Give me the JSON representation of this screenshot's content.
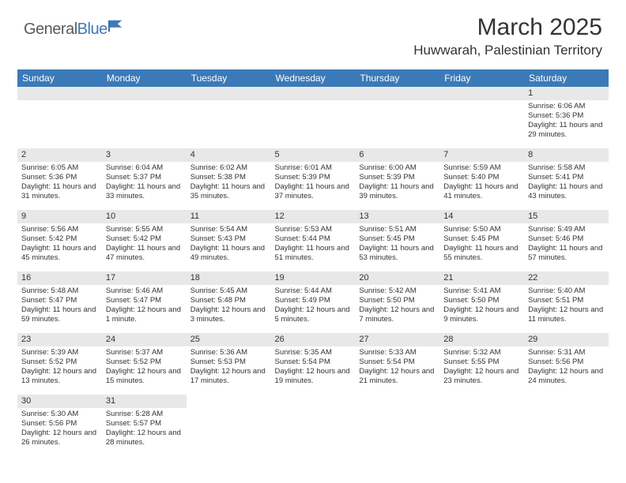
{
  "logo": {
    "text_plain": "General",
    "text_blue": "Blue"
  },
  "title": "March 2025",
  "location": "Huwwarah, Palestinian Territory",
  "colors": {
    "header_bg": "#3b7ab8",
    "header_fg": "#ffffff",
    "daynum_bg": "#e8e8e8",
    "text": "#333333",
    "page_bg": "#ffffff"
  },
  "day_headers": [
    "Sunday",
    "Monday",
    "Tuesday",
    "Wednesday",
    "Thursday",
    "Friday",
    "Saturday"
  ],
  "weeks": [
    [
      {
        "n": "",
        "sr": "",
        "ss": "",
        "dl": ""
      },
      {
        "n": "",
        "sr": "",
        "ss": "",
        "dl": ""
      },
      {
        "n": "",
        "sr": "",
        "ss": "",
        "dl": ""
      },
      {
        "n": "",
        "sr": "",
        "ss": "",
        "dl": ""
      },
      {
        "n": "",
        "sr": "",
        "ss": "",
        "dl": ""
      },
      {
        "n": "",
        "sr": "",
        "ss": "",
        "dl": ""
      },
      {
        "n": "1",
        "sr": "Sunrise: 6:06 AM",
        "ss": "Sunset: 5:36 PM",
        "dl": "Daylight: 11 hours and 29 minutes."
      }
    ],
    [
      {
        "n": "2",
        "sr": "Sunrise: 6:05 AM",
        "ss": "Sunset: 5:36 PM",
        "dl": "Daylight: 11 hours and 31 minutes."
      },
      {
        "n": "3",
        "sr": "Sunrise: 6:04 AM",
        "ss": "Sunset: 5:37 PM",
        "dl": "Daylight: 11 hours and 33 minutes."
      },
      {
        "n": "4",
        "sr": "Sunrise: 6:02 AM",
        "ss": "Sunset: 5:38 PM",
        "dl": "Daylight: 11 hours and 35 minutes."
      },
      {
        "n": "5",
        "sr": "Sunrise: 6:01 AM",
        "ss": "Sunset: 5:39 PM",
        "dl": "Daylight: 11 hours and 37 minutes."
      },
      {
        "n": "6",
        "sr": "Sunrise: 6:00 AM",
        "ss": "Sunset: 5:39 PM",
        "dl": "Daylight: 11 hours and 39 minutes."
      },
      {
        "n": "7",
        "sr": "Sunrise: 5:59 AM",
        "ss": "Sunset: 5:40 PM",
        "dl": "Daylight: 11 hours and 41 minutes."
      },
      {
        "n": "8",
        "sr": "Sunrise: 5:58 AM",
        "ss": "Sunset: 5:41 PM",
        "dl": "Daylight: 11 hours and 43 minutes."
      }
    ],
    [
      {
        "n": "9",
        "sr": "Sunrise: 5:56 AM",
        "ss": "Sunset: 5:42 PM",
        "dl": "Daylight: 11 hours and 45 minutes."
      },
      {
        "n": "10",
        "sr": "Sunrise: 5:55 AM",
        "ss": "Sunset: 5:42 PM",
        "dl": "Daylight: 11 hours and 47 minutes."
      },
      {
        "n": "11",
        "sr": "Sunrise: 5:54 AM",
        "ss": "Sunset: 5:43 PM",
        "dl": "Daylight: 11 hours and 49 minutes."
      },
      {
        "n": "12",
        "sr": "Sunrise: 5:53 AM",
        "ss": "Sunset: 5:44 PM",
        "dl": "Daylight: 11 hours and 51 minutes."
      },
      {
        "n": "13",
        "sr": "Sunrise: 5:51 AM",
        "ss": "Sunset: 5:45 PM",
        "dl": "Daylight: 11 hours and 53 minutes."
      },
      {
        "n": "14",
        "sr": "Sunrise: 5:50 AM",
        "ss": "Sunset: 5:45 PM",
        "dl": "Daylight: 11 hours and 55 minutes."
      },
      {
        "n": "15",
        "sr": "Sunrise: 5:49 AM",
        "ss": "Sunset: 5:46 PM",
        "dl": "Daylight: 11 hours and 57 minutes."
      }
    ],
    [
      {
        "n": "16",
        "sr": "Sunrise: 5:48 AM",
        "ss": "Sunset: 5:47 PM",
        "dl": "Daylight: 11 hours and 59 minutes."
      },
      {
        "n": "17",
        "sr": "Sunrise: 5:46 AM",
        "ss": "Sunset: 5:47 PM",
        "dl": "Daylight: 12 hours and 1 minute."
      },
      {
        "n": "18",
        "sr": "Sunrise: 5:45 AM",
        "ss": "Sunset: 5:48 PM",
        "dl": "Daylight: 12 hours and 3 minutes."
      },
      {
        "n": "19",
        "sr": "Sunrise: 5:44 AM",
        "ss": "Sunset: 5:49 PM",
        "dl": "Daylight: 12 hours and 5 minutes."
      },
      {
        "n": "20",
        "sr": "Sunrise: 5:42 AM",
        "ss": "Sunset: 5:50 PM",
        "dl": "Daylight: 12 hours and 7 minutes."
      },
      {
        "n": "21",
        "sr": "Sunrise: 5:41 AM",
        "ss": "Sunset: 5:50 PM",
        "dl": "Daylight: 12 hours and 9 minutes."
      },
      {
        "n": "22",
        "sr": "Sunrise: 5:40 AM",
        "ss": "Sunset: 5:51 PM",
        "dl": "Daylight: 12 hours and 11 minutes."
      }
    ],
    [
      {
        "n": "23",
        "sr": "Sunrise: 5:39 AM",
        "ss": "Sunset: 5:52 PM",
        "dl": "Daylight: 12 hours and 13 minutes."
      },
      {
        "n": "24",
        "sr": "Sunrise: 5:37 AM",
        "ss": "Sunset: 5:52 PM",
        "dl": "Daylight: 12 hours and 15 minutes."
      },
      {
        "n": "25",
        "sr": "Sunrise: 5:36 AM",
        "ss": "Sunset: 5:53 PM",
        "dl": "Daylight: 12 hours and 17 minutes."
      },
      {
        "n": "26",
        "sr": "Sunrise: 5:35 AM",
        "ss": "Sunset: 5:54 PM",
        "dl": "Daylight: 12 hours and 19 minutes."
      },
      {
        "n": "27",
        "sr": "Sunrise: 5:33 AM",
        "ss": "Sunset: 5:54 PM",
        "dl": "Daylight: 12 hours and 21 minutes."
      },
      {
        "n": "28",
        "sr": "Sunrise: 5:32 AM",
        "ss": "Sunset: 5:55 PM",
        "dl": "Daylight: 12 hours and 23 minutes."
      },
      {
        "n": "29",
        "sr": "Sunrise: 5:31 AM",
        "ss": "Sunset: 5:56 PM",
        "dl": "Daylight: 12 hours and 24 minutes."
      }
    ],
    [
      {
        "n": "30",
        "sr": "Sunrise: 5:30 AM",
        "ss": "Sunset: 5:56 PM",
        "dl": "Daylight: 12 hours and 26 minutes."
      },
      {
        "n": "31",
        "sr": "Sunrise: 5:28 AM",
        "ss": "Sunset: 5:57 PM",
        "dl": "Daylight: 12 hours and 28 minutes."
      },
      {
        "n": "",
        "sr": "",
        "ss": "",
        "dl": ""
      },
      {
        "n": "",
        "sr": "",
        "ss": "",
        "dl": ""
      },
      {
        "n": "",
        "sr": "",
        "ss": "",
        "dl": ""
      },
      {
        "n": "",
        "sr": "",
        "ss": "",
        "dl": ""
      },
      {
        "n": "",
        "sr": "",
        "ss": "",
        "dl": ""
      }
    ]
  ]
}
